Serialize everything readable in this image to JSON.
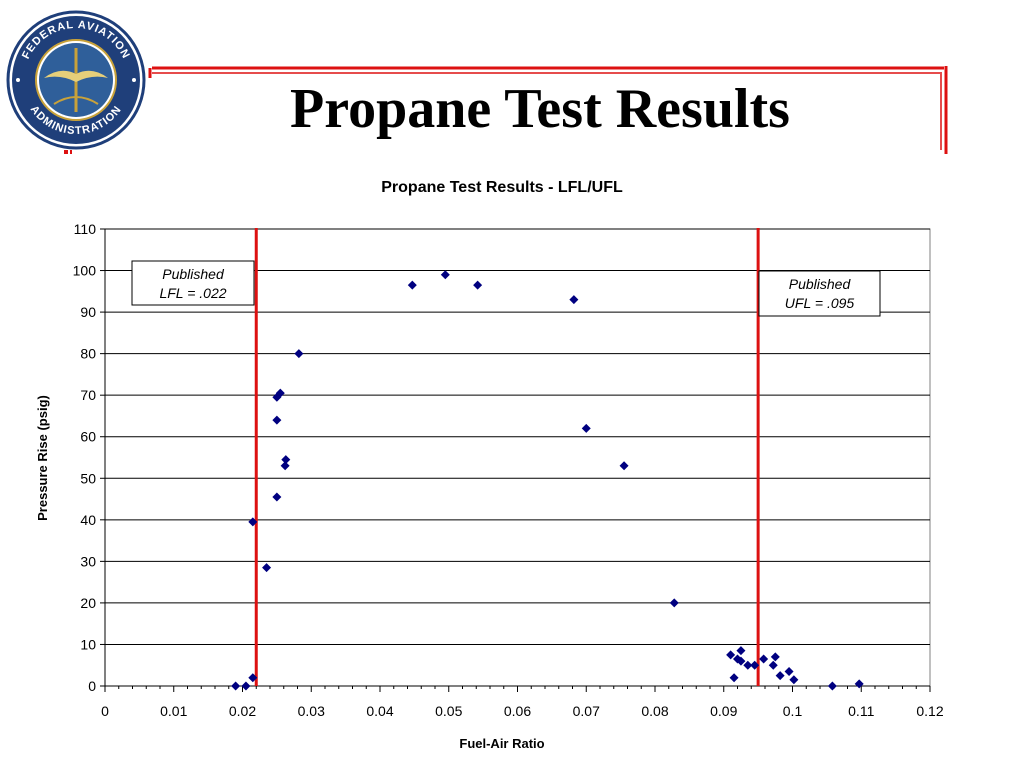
{
  "slide": {
    "title": "Propane Test Results",
    "seal": {
      "text_top": "FEDERAL AVIATION",
      "text_bottom": "ADMINISTRATION"
    },
    "colors": {
      "accent_red": "#dd1111",
      "seal_blue": "#1f3f7a",
      "seal_gold": "#c8a23a"
    }
  },
  "chart_data": {
    "type": "scatter",
    "title": "Propane Test Results - LFL/UFL",
    "xlabel": "Fuel-Air Ratio",
    "ylabel": "Pressure Rise (psig)",
    "xlim": [
      0,
      0.12
    ],
    "ylim": [
      0,
      110
    ],
    "x_ticks": [
      "0",
      "0.01",
      "0.02",
      "0.03",
      "0.04",
      "0.05",
      "0.06",
      "0.07",
      "0.08",
      "0.09",
      "0.1",
      "0.11",
      "0.12"
    ],
    "y_ticks": [
      "0",
      "10",
      "20",
      "30",
      "40",
      "50",
      "60",
      "70",
      "80",
      "90",
      "100",
      "110"
    ],
    "grid": "horizontal",
    "marker_color": "#000080",
    "points": [
      {
        "x": 0.019,
        "y": 0
      },
      {
        "x": 0.0205,
        "y": 0
      },
      {
        "x": 0.0215,
        "y": 2
      },
      {
        "x": 0.0215,
        "y": 39.5
      },
      {
        "x": 0.0235,
        "y": 28.5
      },
      {
        "x": 0.025,
        "y": 45.5
      },
      {
        "x": 0.025,
        "y": 64
      },
      {
        "x": 0.025,
        "y": 69.5
      },
      {
        "x": 0.0255,
        "y": 70.5
      },
      {
        "x": 0.0262,
        "y": 53
      },
      {
        "x": 0.0263,
        "y": 54.5
      },
      {
        "x": 0.0282,
        "y": 80
      },
      {
        "x": 0.0447,
        "y": 96.5
      },
      {
        "x": 0.0495,
        "y": 99
      },
      {
        "x": 0.0542,
        "y": 96.5
      },
      {
        "x": 0.0682,
        "y": 93
      },
      {
        "x": 0.07,
        "y": 62
      },
      {
        "x": 0.0755,
        "y": 53
      },
      {
        "x": 0.0828,
        "y": 20
      },
      {
        "x": 0.091,
        "y": 7.5
      },
      {
        "x": 0.0915,
        "y": 2
      },
      {
        "x": 0.092,
        "y": 6.5
      },
      {
        "x": 0.0925,
        "y": 8.5
      },
      {
        "x": 0.0925,
        "y": 6
      },
      {
        "x": 0.0935,
        "y": 5
      },
      {
        "x": 0.0945,
        "y": 5
      },
      {
        "x": 0.0958,
        "y": 6.5
      },
      {
        "x": 0.0972,
        "y": 5
      },
      {
        "x": 0.0975,
        "y": 7
      },
      {
        "x": 0.0982,
        "y": 2.5
      },
      {
        "x": 0.0995,
        "y": 3.5
      },
      {
        "x": 0.1002,
        "y": 1.5
      },
      {
        "x": 0.1058,
        "y": 0
      },
      {
        "x": 0.1097,
        "y": 0.5
      }
    ],
    "reference_lines": [
      {
        "axis": "x",
        "value": 0.022,
        "color": "#dd1111"
      },
      {
        "axis": "x",
        "value": 0.095,
        "color": "#dd1111"
      }
    ],
    "annotations": [
      {
        "line1": "Published",
        "line2": "LFL = .022"
      },
      {
        "line1": "Published",
        "line2": "UFL = .095"
      }
    ]
  }
}
